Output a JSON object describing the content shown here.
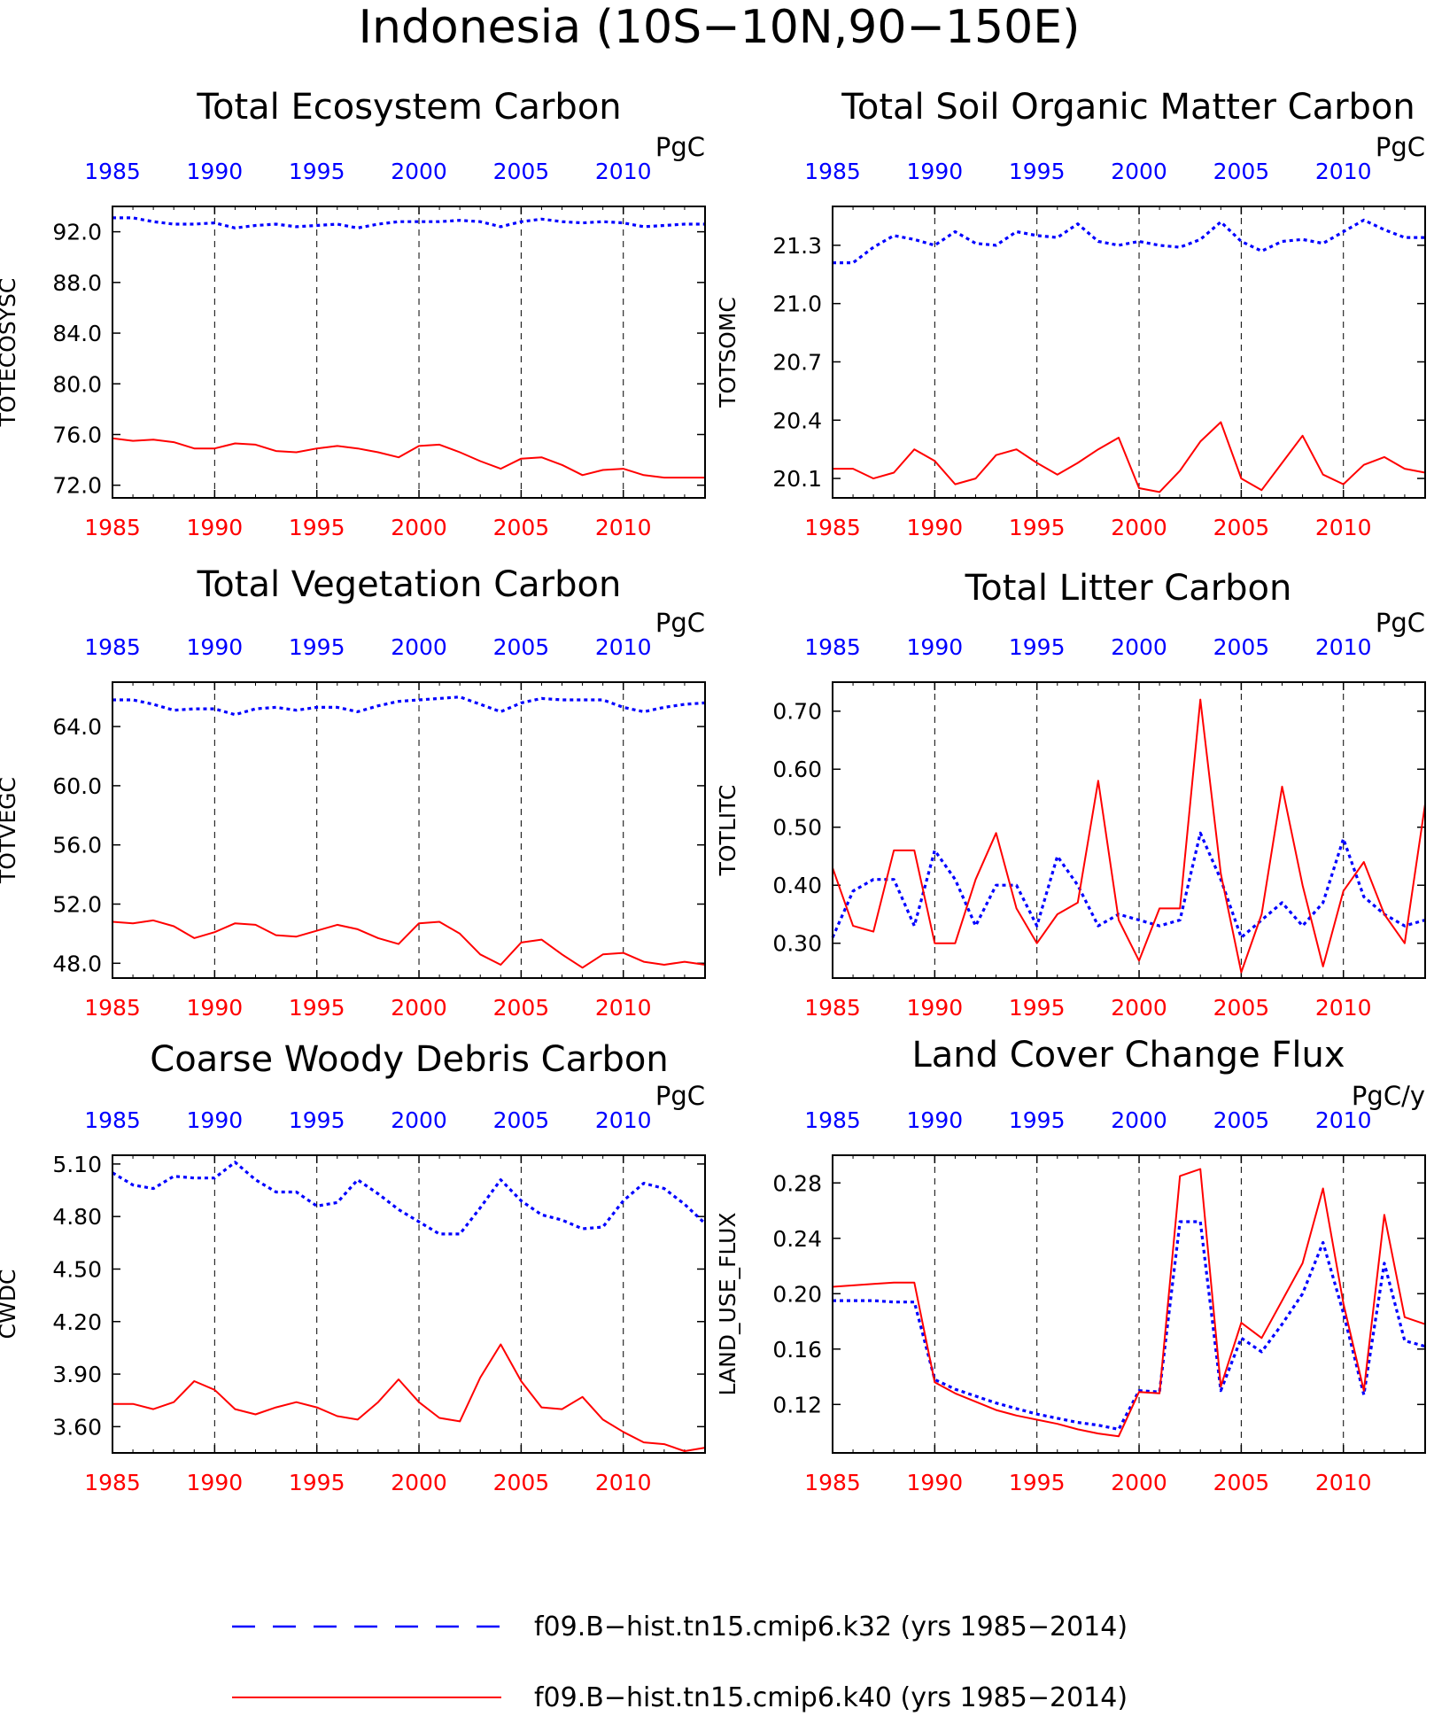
{
  "figure": {
    "title": "Indonesia (10S−10N,90−150E)",
    "colors": {
      "case1": "#0000ff",
      "case2": "#ff0000",
      "axis": "#000000"
    },
    "x_ticks": [
      "1985",
      "1990",
      "1995",
      "2000",
      "2005",
      "2010"
    ]
  },
  "legend": {
    "entries": [
      {
        "label": "f09.B−hist.tn15.cmip6.k32 (yrs 1985−2014)",
        "color": "#0000ff",
        "style": "dashed"
      },
      {
        "label": "f09.B−hist.tn15.cmip6.k40 (yrs 1985−2014)",
        "color": "#ff0000",
        "style": "solid"
      }
    ]
  },
  "chart_data": [
    {
      "type": "line",
      "title": "Total Ecosystem Carbon",
      "ylabel": "TOTECOSYSC",
      "units": "PgC",
      "xlim": [
        1985,
        2014
      ],
      "ylim": [
        71.0,
        94.0
      ],
      "yticks": [
        72.0,
        76.0,
        80.0,
        84.0,
        88.0,
        92.0
      ],
      "ytick_labels": [
        "72.0",
        "76.0",
        "80.0",
        "84.0",
        "88.0",
        "92.0"
      ],
      "x": [
        1985,
        1986,
        1987,
        1988,
        1989,
        1990,
        1991,
        1992,
        1993,
        1994,
        1995,
        1996,
        1997,
        1998,
        1999,
        2000,
        2001,
        2002,
        2003,
        2004,
        2005,
        2006,
        2007,
        2008,
        2009,
        2010,
        2011,
        2012,
        2013,
        2014
      ],
      "series": [
        {
          "values": [
            93.1,
            93.1,
            92.8,
            92.6,
            92.6,
            92.7,
            92.3,
            92.5,
            92.6,
            92.4,
            92.5,
            92.6,
            92.3,
            92.6,
            92.8,
            92.8,
            92.8,
            92.9,
            92.8,
            92.4,
            92.8,
            93.0,
            92.8,
            92.7,
            92.8,
            92.7,
            92.4,
            92.5,
            92.6,
            92.6
          ]
        },
        {
          "values": [
            75.7,
            75.5,
            75.6,
            75.4,
            74.9,
            74.9,
            75.3,
            75.2,
            74.7,
            74.6,
            74.9,
            75.1,
            74.9,
            74.6,
            74.2,
            75.1,
            75.2,
            74.6,
            73.9,
            73.3,
            74.1,
            74.2,
            73.6,
            72.8,
            73.2,
            73.3,
            72.8,
            72.6,
            72.6,
            72.6
          ]
        }
      ]
    },
    {
      "type": "line",
      "title": "Total Soil Organic Matter Carbon",
      "ylabel": "TOTSOMC",
      "units": "PgC",
      "xlim": [
        1985,
        2014
      ],
      "ylim": [
        20.0,
        21.5
      ],
      "yticks": [
        20.1,
        20.4,
        20.7,
        21.0,
        21.3
      ],
      "ytick_labels": [
        "20.1",
        "20.4",
        "20.7",
        "21.0",
        "21.3"
      ],
      "x": [
        1985,
        1986,
        1987,
        1988,
        1989,
        1990,
        1991,
        1992,
        1993,
        1994,
        1995,
        1996,
        1997,
        1998,
        1999,
        2000,
        2001,
        2002,
        2003,
        2004,
        2005,
        2006,
        2007,
        2008,
        2009,
        2010,
        2011,
        2012,
        2013,
        2014
      ],
      "series": [
        {
          "values": [
            21.21,
            21.21,
            21.29,
            21.35,
            21.33,
            21.3,
            21.37,
            21.31,
            21.3,
            21.37,
            21.35,
            21.34,
            21.41,
            21.32,
            21.3,
            21.32,
            21.3,
            21.29,
            21.33,
            21.42,
            21.32,
            21.27,
            21.32,
            21.33,
            21.31,
            21.37,
            21.43,
            21.38,
            21.34,
            21.34
          ]
        },
        {
          "values": [
            20.15,
            20.15,
            20.1,
            20.13,
            20.25,
            20.19,
            20.07,
            20.1,
            20.22,
            20.25,
            20.18,
            20.12,
            20.18,
            20.25,
            20.31,
            20.05,
            20.03,
            20.14,
            20.29,
            20.39,
            20.1,
            20.04,
            20.18,
            20.32,
            20.12,
            20.07,
            20.17,
            20.21,
            20.15,
            20.13
          ]
        }
      ]
    },
    {
      "type": "line",
      "title": "Total Vegetation Carbon",
      "ylabel": "TOTVEGC",
      "units": "PgC",
      "xlim": [
        1985,
        2014
      ],
      "ylim": [
        47.0,
        67.0
      ],
      "yticks": [
        48.0,
        52.0,
        56.0,
        60.0,
        64.0
      ],
      "ytick_labels": [
        "48.0",
        "52.0",
        "56.0",
        "60.0",
        "64.0"
      ],
      "x": [
        1985,
        1986,
        1987,
        1988,
        1989,
        1990,
        1991,
        1992,
        1993,
        1994,
        1995,
        1996,
        1997,
        1998,
        1999,
        2000,
        2001,
        2002,
        2003,
        2004,
        2005,
        2006,
        2007,
        2008,
        2009,
        2010,
        2011,
        2012,
        2013,
        2014
      ],
      "series": [
        {
          "values": [
            65.8,
            65.8,
            65.5,
            65.1,
            65.2,
            65.2,
            64.8,
            65.2,
            65.3,
            65.1,
            65.3,
            65.3,
            65.0,
            65.4,
            65.7,
            65.8,
            65.9,
            66.0,
            65.5,
            65.0,
            65.6,
            65.9,
            65.8,
            65.8,
            65.8,
            65.3,
            65.0,
            65.3,
            65.5,
            65.6
          ]
        },
        {
          "values": [
            50.8,
            50.7,
            50.9,
            50.5,
            49.7,
            50.1,
            50.7,
            50.6,
            49.9,
            49.8,
            50.2,
            50.6,
            50.3,
            49.7,
            49.3,
            50.7,
            50.8,
            50.0,
            48.6,
            47.9,
            49.4,
            49.6,
            48.6,
            47.7,
            48.6,
            48.7,
            48.1,
            47.9,
            48.1,
            47.9
          ]
        }
      ]
    },
    {
      "type": "line",
      "title": "Total Litter Carbon",
      "ylabel": "TOTLITC",
      "units": "PgC",
      "xlim": [
        1985,
        2014
      ],
      "ylim": [
        0.24,
        0.75
      ],
      "yticks": [
        0.3,
        0.4,
        0.5,
        0.6,
        0.7
      ],
      "ytick_labels": [
        "0.30",
        "0.40",
        "0.50",
        "0.60",
        "0.70"
      ],
      "x": [
        1985,
        1986,
        1987,
        1988,
        1989,
        1990,
        1991,
        1992,
        1993,
        1994,
        1995,
        1996,
        1997,
        1998,
        1999,
        2000,
        2001,
        2002,
        2003,
        2004,
        2005,
        2006,
        2007,
        2008,
        2009,
        2010,
        2011,
        2012,
        2013,
        2014
      ],
      "series": [
        {
          "values": [
            0.31,
            0.39,
            0.41,
            0.41,
            0.33,
            0.46,
            0.41,
            0.33,
            0.4,
            0.4,
            0.33,
            0.45,
            0.4,
            0.33,
            0.35,
            0.34,
            0.33,
            0.34,
            0.49,
            0.41,
            0.31,
            0.34,
            0.37,
            0.33,
            0.37,
            0.48,
            0.38,
            0.35,
            0.33,
            0.34
          ]
        },
        {
          "values": [
            0.43,
            0.33,
            0.32,
            0.46,
            0.46,
            0.3,
            0.3,
            0.41,
            0.49,
            0.36,
            0.3,
            0.35,
            0.37,
            0.58,
            0.34,
            0.27,
            0.36,
            0.36,
            0.72,
            0.42,
            0.25,
            0.35,
            0.57,
            0.4,
            0.26,
            0.39,
            0.44,
            0.35,
            0.3,
            0.54
          ]
        }
      ]
    },
    {
      "type": "line",
      "title": "Coarse Woody Debris Carbon",
      "ylabel": "CWDC",
      "units": "PgC",
      "xlim": [
        1985,
        2014
      ],
      "ylim": [
        3.45,
        5.15
      ],
      "yticks": [
        3.6,
        3.9,
        4.2,
        4.5,
        4.8,
        5.1
      ],
      "ytick_labels": [
        "3.60",
        "3.90",
        "4.20",
        "4.50",
        "4.80",
        "5.10"
      ],
      "x": [
        1985,
        1986,
        1987,
        1988,
        1989,
        1990,
        1991,
        1992,
        1993,
        1994,
        1995,
        1996,
        1997,
        1998,
        1999,
        2000,
        2001,
        2002,
        2003,
        2004,
        2005,
        2006,
        2007,
        2008,
        2009,
        2010,
        2011,
        2012,
        2013,
        2014
      ],
      "series": [
        {
          "values": [
            5.05,
            4.98,
            4.96,
            5.03,
            5.02,
            5.02,
            5.11,
            5.01,
            4.94,
            4.94,
            4.86,
            4.88,
            5.01,
            4.93,
            4.84,
            4.77,
            4.7,
            4.7,
            4.85,
            5.01,
            4.89,
            4.81,
            4.78,
            4.73,
            4.74,
            4.89,
            4.99,
            4.96,
            4.87,
            4.76
          ]
        },
        {
          "values": [
            3.73,
            3.73,
            3.7,
            3.74,
            3.86,
            3.81,
            3.7,
            3.67,
            3.71,
            3.74,
            3.71,
            3.66,
            3.64,
            3.74,
            3.87,
            3.74,
            3.65,
            3.63,
            3.88,
            4.07,
            3.86,
            3.71,
            3.7,
            3.77,
            3.64,
            3.57,
            3.51,
            3.5,
            3.46,
            3.48
          ]
        }
      ]
    },
    {
      "type": "line",
      "title": "Land Cover Change Flux",
      "ylabel": "LAND_USE_FLUX",
      "units": "PgC/y",
      "xlim": [
        1985,
        2014
      ],
      "ylim": [
        0.085,
        0.3
      ],
      "yticks": [
        0.12,
        0.16,
        0.2,
        0.24,
        0.28
      ],
      "ytick_labels": [
        "0.12",
        "0.16",
        "0.20",
        "0.24",
        "0.28"
      ],
      "x": [
        1985,
        1986,
        1987,
        1988,
        1989,
        1990,
        1991,
        1992,
        1993,
        1994,
        1995,
        1996,
        1997,
        1998,
        1999,
        2000,
        2001,
        2002,
        2003,
        2004,
        2005,
        2006,
        2007,
        2008,
        2009,
        2010,
        2011,
        2012,
        2013,
        2014
      ],
      "series": [
        {
          "values": [
            0.195,
            0.195,
            0.195,
            0.194,
            0.194,
            0.138,
            0.131,
            0.126,
            0.121,
            0.117,
            0.113,
            0.11,
            0.107,
            0.105,
            0.102,
            0.13,
            0.129,
            0.252,
            0.252,
            0.13,
            0.168,
            0.158,
            0.178,
            0.2,
            0.237,
            0.186,
            0.127,
            0.222,
            0.166,
            0.162
          ]
        },
        {
          "values": [
            0.205,
            0.206,
            0.207,
            0.208,
            0.208,
            0.136,
            0.128,
            0.122,
            0.116,
            0.112,
            0.109,
            0.106,
            0.102,
            0.099,
            0.097,
            0.129,
            0.128,
            0.285,
            0.29,
            0.133,
            0.179,
            0.168,
            0.195,
            0.222,
            0.276,
            0.193,
            0.13,
            0.257,
            0.183,
            0.178
          ]
        }
      ]
    }
  ]
}
